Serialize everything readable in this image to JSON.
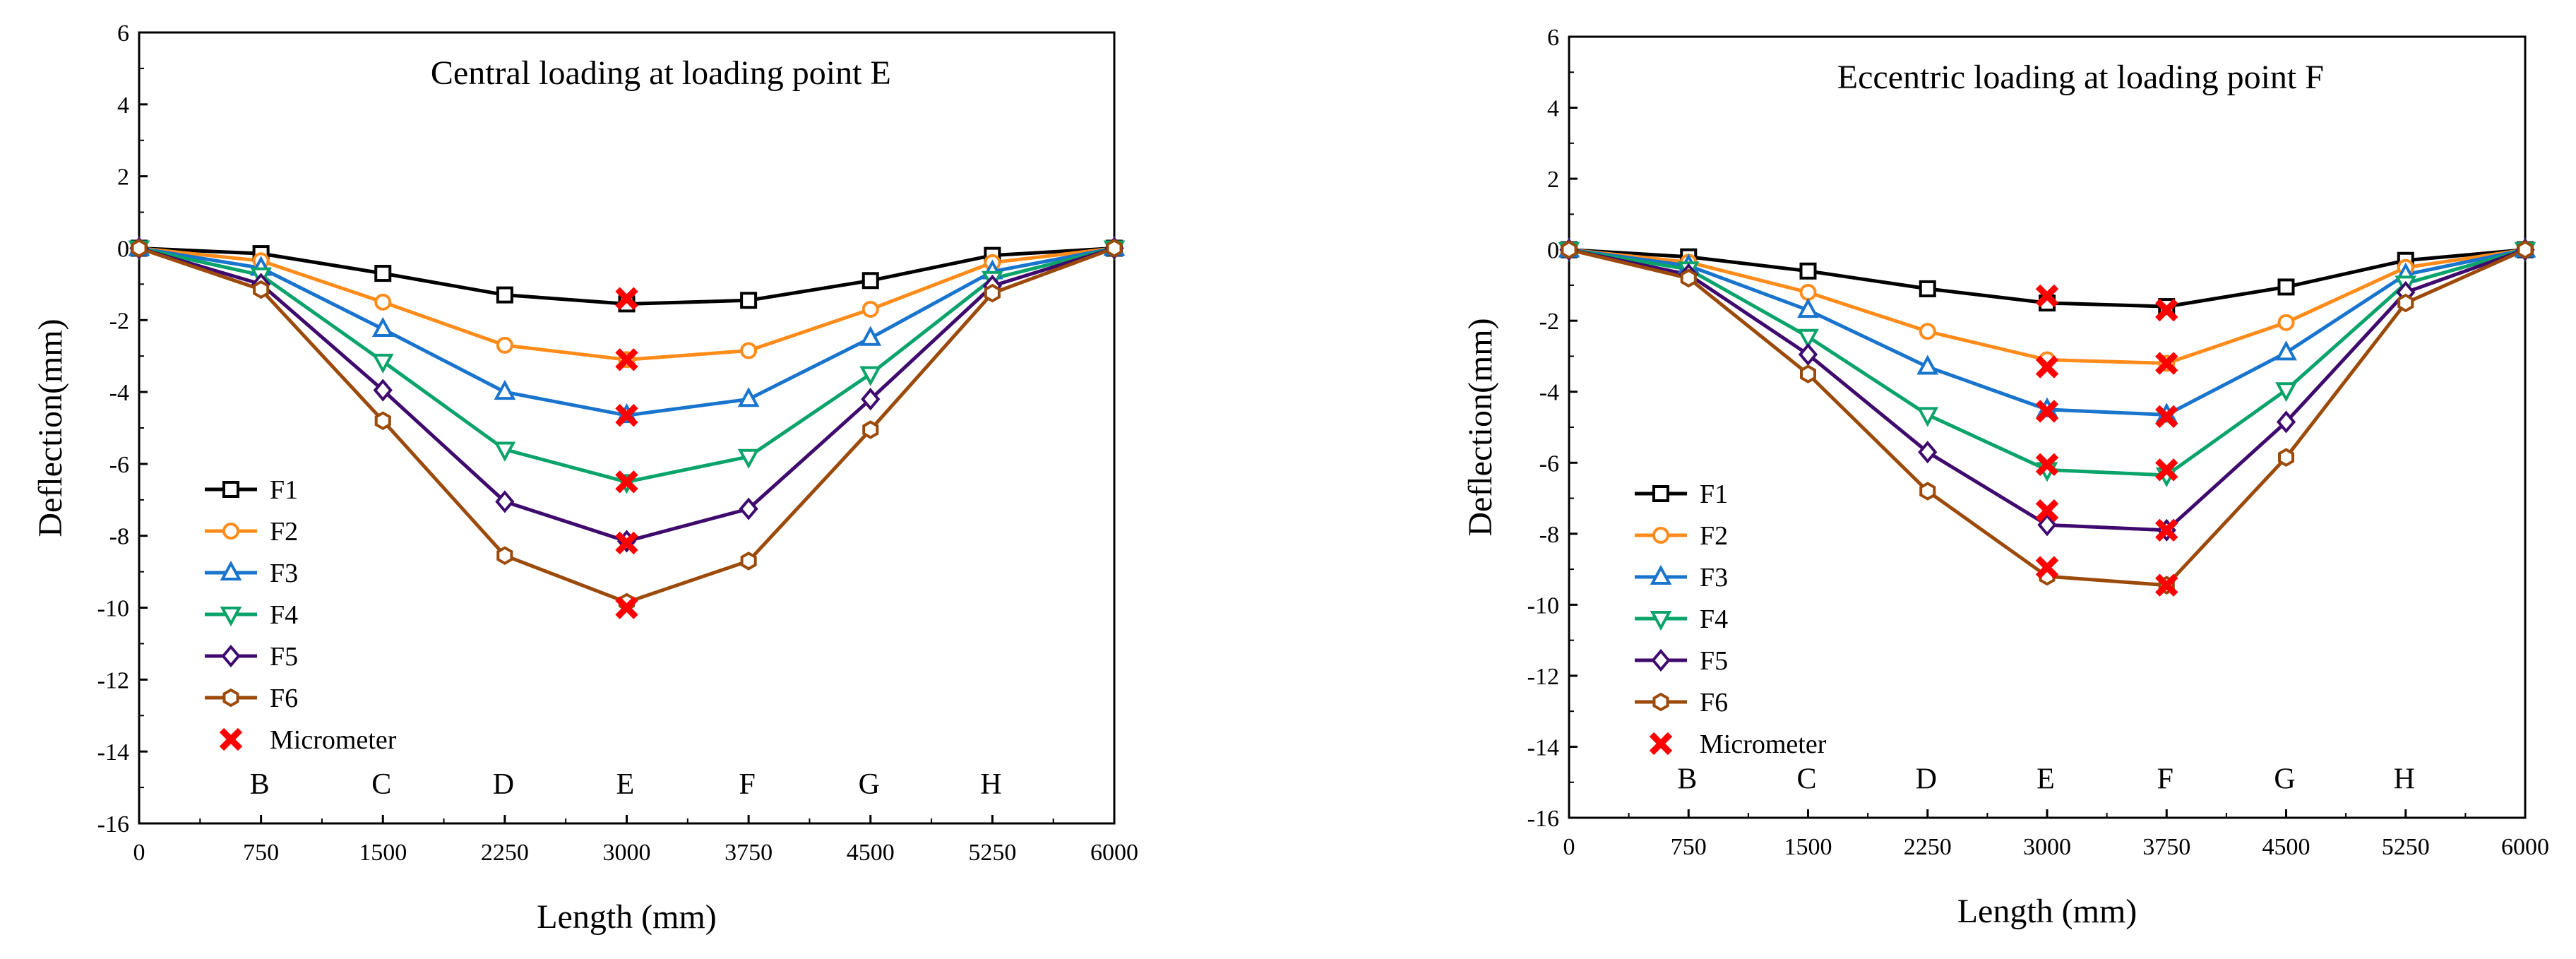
{
  "chart_data": [
    {
      "type": "line",
      "title": "Central loading at loading point E",
      "xlabel": "Length (mm)",
      "ylabel": "Deflection(mm)",
      "xlim": [
        0,
        6000
      ],
      "ylim": [
        -16,
        6
      ],
      "x_ticks": [
        0,
        750,
        1500,
        2250,
        3000,
        3750,
        4500,
        5250,
        6000
      ],
      "y_ticks": [
        6,
        4,
        2,
        0,
        -2,
        -4,
        -6,
        -8,
        -10,
        -12,
        -14,
        -16
      ],
      "point_labels": [
        {
          "x": 750,
          "label": "B"
        },
        {
          "x": 1500,
          "label": "C"
        },
        {
          "x": 2250,
          "label": "D"
        },
        {
          "x": 3000,
          "label": "E"
        },
        {
          "x": 3750,
          "label": "F"
        },
        {
          "x": 4500,
          "label": "G"
        },
        {
          "x": 5250,
          "label": "H"
        }
      ],
      "x": [
        0,
        750,
        1500,
        2250,
        3000,
        3750,
        4500,
        5250,
        6000
      ],
      "series": [
        {
          "name": "F1",
          "color": "#000000",
          "marker": "square",
          "values": [
            0,
            -0.15,
            -0.7,
            -1.3,
            -1.55,
            -1.45,
            -0.9,
            -0.2,
            0
          ]
        },
        {
          "name": "F2",
          "color": "#ff8c1a",
          "marker": "circle",
          "values": [
            0,
            -0.35,
            -1.5,
            -2.7,
            -3.1,
            -2.85,
            -1.7,
            -0.4,
            0
          ]
        },
        {
          "name": "F3",
          "color": "#1874cd",
          "marker": "triangle-up",
          "values": [
            0,
            -0.55,
            -2.25,
            -4.0,
            -4.65,
            -4.2,
            -2.5,
            -0.65,
            0
          ]
        },
        {
          "name": "F4",
          "color": "#0aa36a",
          "marker": "triangle-down",
          "values": [
            0,
            -0.75,
            -3.15,
            -5.6,
            -6.5,
            -5.8,
            -3.5,
            -0.85,
            0
          ]
        },
        {
          "name": "F5",
          "color": "#3f0a6e",
          "marker": "diamond",
          "values": [
            0,
            -1.0,
            -3.95,
            -7.05,
            -8.15,
            -7.25,
            -4.2,
            -1.05,
            0
          ]
        },
        {
          "name": "F6",
          "color": "#9c4a0a",
          "marker": "hexagon",
          "values": [
            0,
            -1.15,
            -4.8,
            -8.55,
            -9.85,
            -8.7,
            -5.05,
            -1.25,
            0
          ]
        }
      ],
      "micrometer": {
        "name": "Micrometer",
        "color": "#ff0000",
        "points": [
          {
            "x": 3000,
            "y": -1.4
          },
          {
            "x": 3000,
            "y": -3.1
          },
          {
            "x": 3000,
            "y": -4.65
          },
          {
            "x": 3000,
            "y": -6.5
          },
          {
            "x": 3000,
            "y": -8.2
          },
          {
            "x": 3000,
            "y": -10.0
          }
        ]
      },
      "legend_position": "bottom-left"
    },
    {
      "type": "line",
      "title": "Eccentric loading at loading point F",
      "xlabel": "Length (mm)",
      "ylabel": "Deflection(mm)",
      "xlim": [
        0,
        6000
      ],
      "ylim": [
        -16,
        6
      ],
      "x_ticks": [
        0,
        750,
        1500,
        2250,
        3000,
        3750,
        4500,
        5250,
        6000
      ],
      "y_ticks": [
        6,
        4,
        2,
        0,
        -2,
        -4,
        -6,
        -8,
        -10,
        -12,
        -14,
        -16
      ],
      "point_labels": [
        {
          "x": 750,
          "label": "B"
        },
        {
          "x": 1500,
          "label": "C"
        },
        {
          "x": 2250,
          "label": "D"
        },
        {
          "x": 3000,
          "label": "E"
        },
        {
          "x": 3750,
          "label": "F"
        },
        {
          "x": 4500,
          "label": "G"
        },
        {
          "x": 5250,
          "label": "H"
        }
      ],
      "x": [
        0,
        750,
        1500,
        2250,
        3000,
        3750,
        4500,
        5250,
        6000
      ],
      "series": [
        {
          "name": "F1",
          "color": "#000000",
          "marker": "square",
          "values": [
            0,
            -0.2,
            -0.6,
            -1.1,
            -1.5,
            -1.6,
            -1.05,
            -0.3,
            0
          ]
        },
        {
          "name": "F2",
          "color": "#ff8c1a",
          "marker": "circle",
          "values": [
            0,
            -0.35,
            -1.2,
            -2.3,
            -3.1,
            -3.2,
            -2.05,
            -0.5,
            0
          ]
        },
        {
          "name": "F3",
          "color": "#1874cd",
          "marker": "triangle-up",
          "values": [
            0,
            -0.45,
            -1.7,
            -3.3,
            -4.5,
            -4.65,
            -2.9,
            -0.7,
            0
          ]
        },
        {
          "name": "F4",
          "color": "#0aa36a",
          "marker": "triangle-down",
          "values": [
            0,
            -0.55,
            -2.45,
            -4.65,
            -6.2,
            -6.35,
            -3.95,
            -0.95,
            0
          ]
        },
        {
          "name": "F5",
          "color": "#3f0a6e",
          "marker": "diamond",
          "values": [
            0,
            -0.7,
            -2.95,
            -5.7,
            -7.75,
            -7.9,
            -4.85,
            -1.2,
            0
          ]
        },
        {
          "name": "F6",
          "color": "#9c4a0a",
          "marker": "hexagon",
          "values": [
            0,
            -0.8,
            -3.5,
            -6.8,
            -9.2,
            -9.45,
            -5.85,
            -1.5,
            0
          ]
        }
      ],
      "micrometer": {
        "name": "Micrometer",
        "color": "#ff0000",
        "points": [
          {
            "x": 3000,
            "y": -1.3
          },
          {
            "x": 3000,
            "y": -3.3
          },
          {
            "x": 3000,
            "y": -4.55
          },
          {
            "x": 3000,
            "y": -6.05
          },
          {
            "x": 3000,
            "y": -7.35
          },
          {
            "x": 3000,
            "y": -8.95
          },
          {
            "x": 3750,
            "y": -1.7
          },
          {
            "x": 3750,
            "y": -3.2
          },
          {
            "x": 3750,
            "y": -4.7
          },
          {
            "x": 3750,
            "y": -6.2
          },
          {
            "x": 3750,
            "y": -7.9
          },
          {
            "x": 3750,
            "y": -9.45
          }
        ]
      },
      "legend_position": "bottom-left"
    }
  ]
}
